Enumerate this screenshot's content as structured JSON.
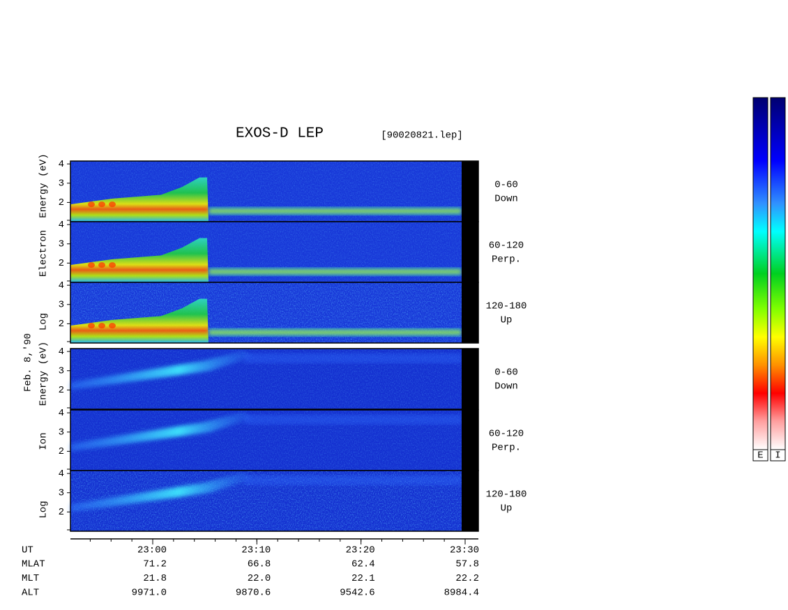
{
  "header": {
    "title": "EXOS-D LEP",
    "file": "[90020821.lep]"
  },
  "date": "Feb. 8,'90",
  "groups": [
    {
      "axis_label": [
        "Log",
        "Electron",
        "Energy (eV)"
      ],
      "kind": "electron",
      "panels": [
        {
          "range": [
            "0-60",
            "Down"
          ],
          "ylim": [
            1,
            4.15
          ],
          "yticks": [
            2,
            3,
            4
          ]
        },
        {
          "range": [
            "60-120",
            "Perp."
          ],
          "ylim": [
            1,
            4.15
          ],
          "yticks": [
            2,
            3,
            4
          ]
        },
        {
          "range": [
            "120-180",
            "Up"
          ],
          "ylim": [
            1,
            4.15
          ],
          "yticks": [
            2,
            3,
            4
          ]
        }
      ]
    },
    {
      "axis_label": [
        "Log",
        "Ion",
        "Energy (eV)"
      ],
      "kind": "ion",
      "panels": [
        {
          "range": [
            "0-60",
            "Down"
          ],
          "ylim": [
            1,
            4.15
          ],
          "yticks": [
            2,
            3,
            4
          ]
        },
        {
          "range": [
            "60-120",
            "Perp."
          ],
          "ylim": [
            1,
            4.15
          ],
          "yticks": [
            2,
            3,
            4
          ]
        },
        {
          "range": [
            "120-180",
            "Up"
          ],
          "ylim": [
            1,
            4.15
          ],
          "yticks": [
            2,
            3,
            4
          ]
        }
      ]
    }
  ],
  "time_axis": {
    "ticks": [
      "23:00",
      "23:10",
      "23:20",
      "23:30"
    ]
  },
  "ephemeris": {
    "ut_label": "UT",
    "rows": [
      {
        "name": "MLAT",
        "values": [
          "71.2",
          "66.8",
          "62.4",
          "57.8"
        ]
      },
      {
        "name": "MLT",
        "values": [
          "21.8",
          "22.0",
          "22.1",
          "22.2"
        ]
      },
      {
        "name": "ALT",
        "values": [
          "9971.0",
          "9870.6",
          "9542.6",
          "8984.4"
        ]
      }
    ]
  },
  "colorbars": [
    "E",
    "I"
  ]
}
